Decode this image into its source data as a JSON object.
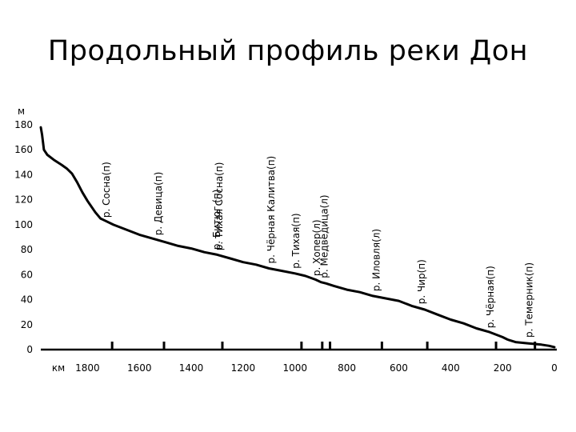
{
  "slide": {
    "title": "Продольный профиль реки Дон"
  },
  "chart_data": {
    "type": "line",
    "title": "Продольный профиль реки Дон",
    "ylabel": "м",
    "xlabel": "км",
    "xlim": [
      1980,
      0
    ],
    "ylim": [
      0,
      180
    ],
    "x_ticks": [
      1800,
      1600,
      1400,
      1200,
      1000,
      800,
      600,
      400,
      200,
      0
    ],
    "y_ticks": [
      0,
      20,
      40,
      60,
      80,
      100,
      120,
      140,
      160,
      180
    ],
    "grid": false,
    "series": [
      {
        "x": [
          1980,
          1975,
          1968,
          1955,
          1930,
          1900,
          1880,
          1860,
          1840,
          1820,
          1800,
          1770,
          1750,
          1730,
          1700,
          1650,
          1600,
          1550,
          1500,
          1450,
          1400,
          1350,
          1300,
          1250,
          1200,
          1150,
          1100,
          1050,
          1000,
          960,
          920,
          900,
          880,
          850,
          800,
          750,
          700,
          650,
          600,
          550,
          500,
          450,
          400,
          350,
          300,
          250,
          200,
          180,
          150,
          100,
          50,
          20,
          0
        ],
        "y": [
          178,
          172,
          160,
          156,
          152,
          148,
          145,
          141,
          134,
          126,
          119,
          110,
          105,
          103,
          100,
          96,
          92,
          89,
          86,
          83,
          81,
          78,
          76,
          73,
          70,
          68,
          65,
          63,
          61,
          59,
          56,
          54,
          53,
          51,
          48,
          46,
          43,
          41,
          39,
          35,
          32,
          28,
          24,
          21,
          17,
          14,
          10,
          8,
          6,
          5,
          4,
          3,
          2
        ]
      }
    ],
    "tributaries": [
      {
        "label": "р. Сосна(п)",
        "km": 1705
      },
      {
        "label": "р. Девица(п)",
        "km": 1505
      },
      {
        "label": "р. Тихая Сосна(п)",
        "km": 1270
      },
      {
        "label": "р. Битюг (п)",
        "km": 1280
      },
      {
        "label": "р. Чёрная Калитва(п)",
        "km": 1070
      },
      {
        "label": "р. Тихая(п)",
        "km": 975
      },
      {
        "label": "р. Хопер(л)",
        "km": 895
      },
      {
        "label": "р. Медведица(л)",
        "km": 865
      },
      {
        "label": "р. Иловля(л)",
        "km": 665
      },
      {
        "label": "р. Чир(п)",
        "km": 490
      },
      {
        "label": "р. Чёрная(п)",
        "km": 225
      },
      {
        "label": "р. Темерник(п)",
        "km": 75
      }
    ]
  }
}
